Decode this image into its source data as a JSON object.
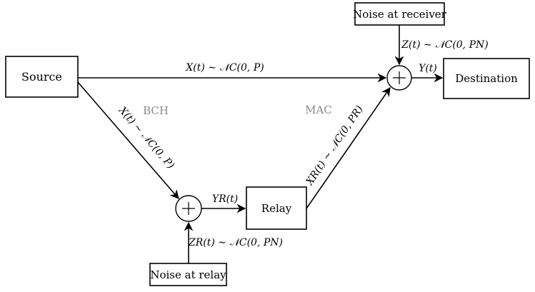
{
  "nodes": {
    "source": "Source",
    "destination": "Destination",
    "relay": "Relay",
    "noise_receiver": "Noise at receiver",
    "noise_relay": "Noise at relay"
  },
  "regions": {
    "bch": "BCH",
    "mac": "MAC"
  },
  "edges": {
    "source_to_destination": "X(t) ∼ 𝒩C(0, P)",
    "source_to_relay_sum": "X(t) ∼ 𝒩C(0, P)",
    "relay_sum_to_relay": "YR(t)",
    "relay_noise": "ZR(t) ∼ 𝒩C(0, PN)",
    "relay_to_destination_sum": "XR(t) ∼ 𝒩C(0, PR)",
    "receiver_noise": "Z(t) ∼ 𝒩C(0, PN)",
    "sum_to_destination": "Y(t)"
  },
  "colors": {
    "line": "#000000",
    "region_label": "#8a8a8a"
  }
}
